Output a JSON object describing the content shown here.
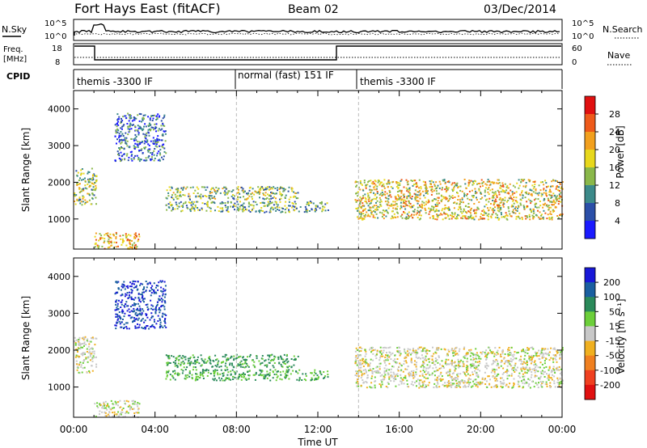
{
  "header": {
    "title": "Fort Hays East (fitACF)",
    "beam": "Beam 02",
    "date": "03/Dec/2014"
  },
  "top_panels": {
    "nsky_label": "N.Sky",
    "nsearch_label": "N.Search",
    "noise_ticks": [
      "10^5",
      "10^0"
    ],
    "freq_label_1": "Freq.",
    "freq_label_2": "[MHz]",
    "freq_ticks": [
      "18",
      "8"
    ],
    "nave_label": "Nave",
    "nave_ticks": [
      "60",
      "0"
    ],
    "cpid_label": "CPID",
    "cpid_segments": [
      "themis -3300 IF",
      "normal (fast) 151 IF",
      "themis -3300 IF"
    ]
  },
  "chart_data": [
    {
      "type": "heatmap",
      "title": "",
      "xlabel": "Time UT",
      "ylabel": "Slant Range [km]",
      "xlim": [
        0,
        24
      ],
      "ylim": [
        180,
        4500
      ],
      "x_ticks": [
        "00:00",
        "04:00",
        "08:00",
        "12:00",
        "16:00",
        "20:00",
        "00:00"
      ],
      "y_ticks": [
        "1000",
        "2000",
        "3000",
        "4000"
      ],
      "colorbar_label": "Power [dB]",
      "colorbar_ticks": [
        "28",
        "24",
        "20",
        "16",
        "12",
        "8",
        "4"
      ],
      "colorbar_colors": [
        "#1a1aff",
        "#2b4fa8",
        "#3c8a8a",
        "#8ab84a",
        "#e8d81c",
        "#f2a01e",
        "#ee5a1a",
        "#e01010"
      ],
      "mode_change_times_hr": [
        8,
        14
      ],
      "echo_regions": [
        {
          "t0": 0.0,
          "t1": 1.1,
          "r0": 1400,
          "r1": 2400,
          "power_db": 14
        },
        {
          "t0": 1.0,
          "t1": 3.2,
          "r0": 200,
          "r1": 650,
          "power_db": 20
        },
        {
          "t0": 2.0,
          "t1": 4.5,
          "r0": 2600,
          "r1": 3900,
          "power_db": 8
        },
        {
          "t0": 4.5,
          "t1": 11.0,
          "r0": 1550,
          "r1": 1900,
          "power_db": 14
        },
        {
          "t0": 4.5,
          "t1": 12.5,
          "r0": 1200,
          "r1": 1500,
          "power_db": 12
        },
        {
          "t0": 13.8,
          "t1": 24.0,
          "r0": 1000,
          "r1": 2100,
          "power_db": 18
        }
      ]
    },
    {
      "type": "heatmap",
      "title": "",
      "xlabel": "Time UT",
      "ylabel": "Slant Range [km]",
      "xlim": [
        0,
        24
      ],
      "ylim": [
        180,
        4500
      ],
      "x_ticks": [
        "00:00",
        "04:00",
        "08:00",
        "12:00",
        "16:00",
        "20:00",
        "00:00"
      ],
      "y_ticks": [
        "1000",
        "2000",
        "3000",
        "4000"
      ],
      "colorbar_label": "Velocity [m s⁻¹]",
      "colorbar_ticks": [
        "200",
        "100",
        "50",
        "15",
        "-15",
        "-50",
        "-100",
        "-200"
      ],
      "colorbar_colors": [
        "#1818d8",
        "#1a5fa0",
        "#2a8a5a",
        "#6ccf3a",
        "#c8c8c8",
        "#f0b020",
        "#f08020",
        "#f04020",
        "#e01010"
      ],
      "mode_change_times_hr": [
        8,
        14
      ],
      "echo_regions": [
        {
          "t0": 0.0,
          "t1": 1.1,
          "r0": 1400,
          "r1": 2400,
          "velocity": 0
        },
        {
          "t0": 1.0,
          "t1": 3.2,
          "r0": 200,
          "r1": 650,
          "velocity": 0
        },
        {
          "t0": 2.0,
          "t1": 4.5,
          "r0": 2600,
          "r1": 3900,
          "velocity": 200
        },
        {
          "t0": 4.5,
          "t1": 11.0,
          "r0": 1550,
          "r1": 1900,
          "velocity": 60
        },
        {
          "t0": 4.5,
          "t1": 12.5,
          "r0": 1200,
          "r1": 1500,
          "velocity": 50
        },
        {
          "t0": 13.8,
          "t1": 24.0,
          "r0": 1000,
          "r1": 2100,
          "velocity": 0
        }
      ]
    }
  ]
}
